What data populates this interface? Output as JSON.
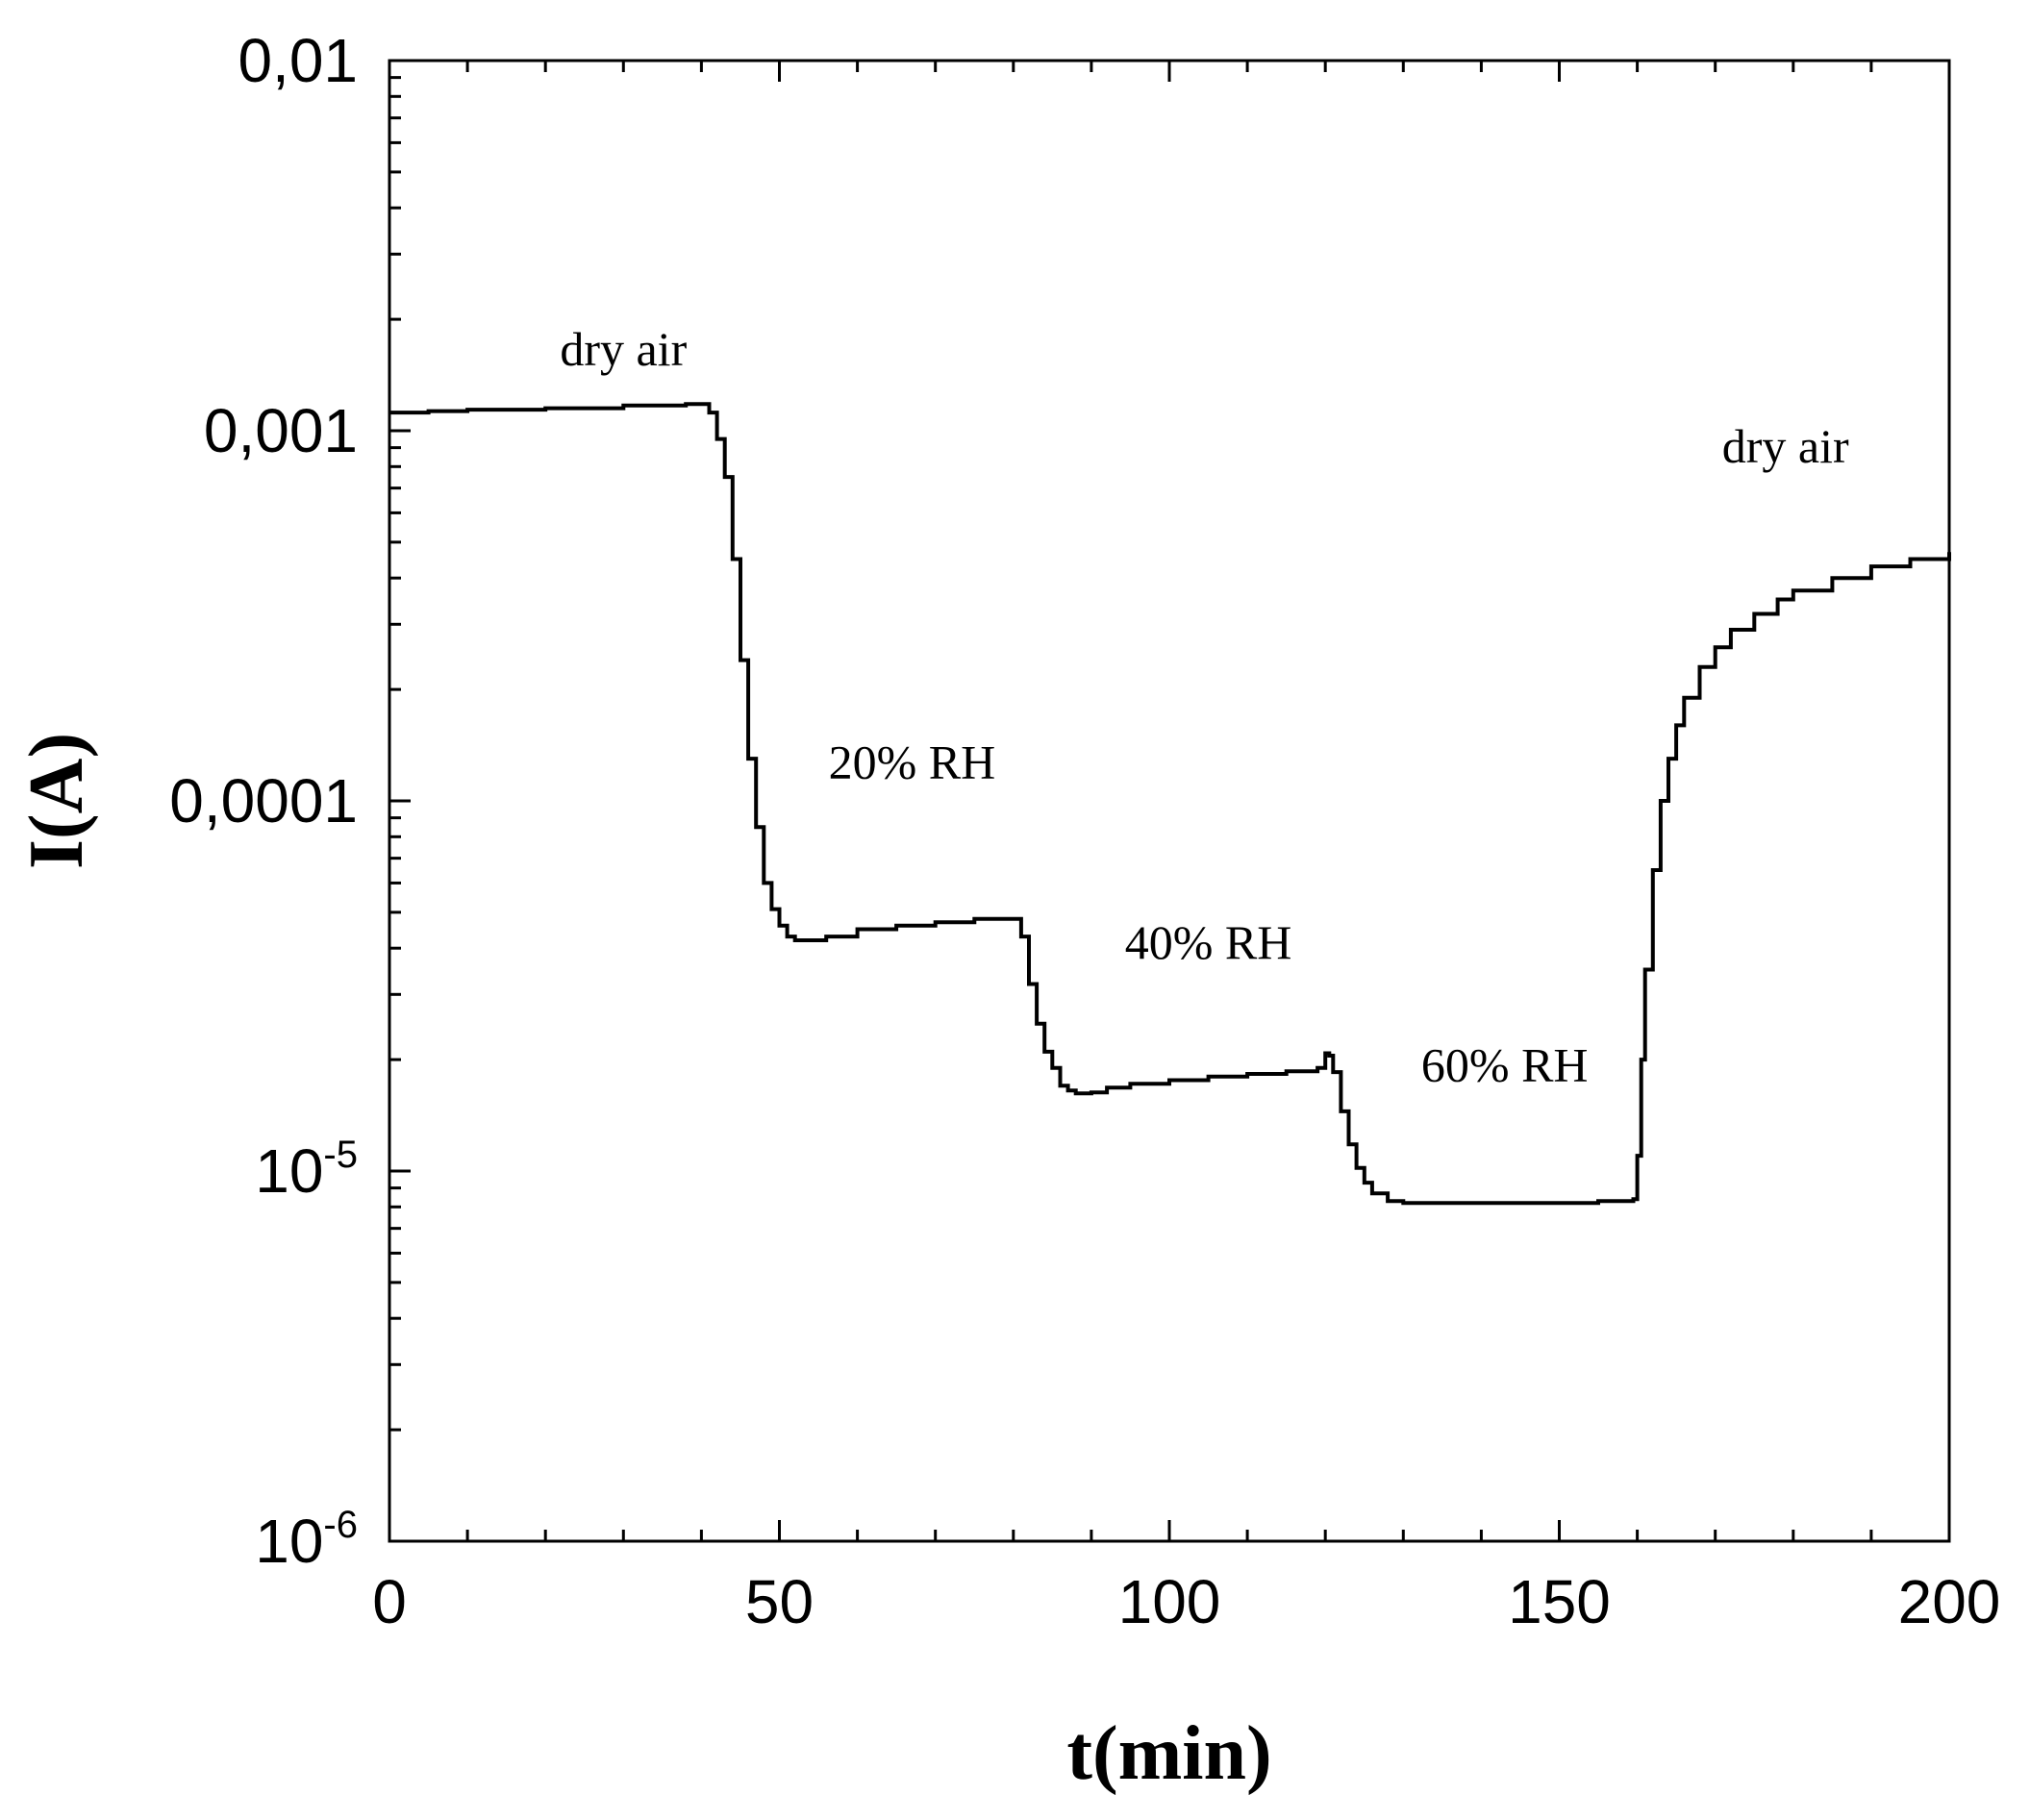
{
  "chart_data": {
    "type": "line",
    "xlabel": "t(min)",
    "ylabel": "I(A)",
    "xlim": [
      0,
      200
    ],
    "ylim": [
      1e-06,
      0.01
    ],
    "yscale": "log",
    "grid": false,
    "x_ticks": [
      {
        "value": 0,
        "label": "0"
      },
      {
        "value": 50,
        "label": "50"
      },
      {
        "value": 100,
        "label": "100"
      },
      {
        "value": 150,
        "label": "150"
      },
      {
        "value": 200,
        "label": "200"
      }
    ],
    "y_ticks": [
      {
        "value": 1e-06,
        "base": "10",
        "exp": "-6"
      },
      {
        "value": 1e-05,
        "base": "10",
        "exp": "-5"
      },
      {
        "value": 0.0001,
        "base": "0,0001",
        "exp": ""
      },
      {
        "value": 0.001,
        "base": "0,001",
        "exp": ""
      },
      {
        "value": 0.01,
        "base": "0,01",
        "exp": ""
      }
    ],
    "annotations": [
      {
        "text": "dry air",
        "x": 30,
        "y": 0.0015
      },
      {
        "text": "20% RH",
        "x": 67,
        "y": 0.000115
      },
      {
        "text": "40% RH",
        "x": 105,
        "y": 3.75e-05
      },
      {
        "text": "60% RH",
        "x": 143,
        "y": 1.75e-05
      },
      {
        "text": "dry air",
        "x": 179,
        "y": 0.00082
      }
    ],
    "series": [
      {
        "x": [
          0,
          5,
          10,
          20,
          30,
          38,
          40,
          41,
          42,
          43,
          44,
          45,
          46,
          47,
          48,
          49,
          50,
          51,
          52,
          54,
          56,
          60,
          65,
          70,
          75,
          80,
          81,
          82,
          83,
          84,
          85,
          86,
          87,
          88,
          90,
          92,
          95,
          100,
          105,
          110,
          115,
          119,
          120,
          120.5,
          121,
          122,
          123,
          124,
          125,
          126,
          128,
          130,
          135,
          140,
          145,
          150,
          155,
          159.5,
          160,
          160.5,
          161,
          162,
          163,
          164,
          165,
          166,
          168,
          170,
          172,
          175,
          178,
          180,
          185,
          190,
          195,
          200
        ],
        "y": [
          0.00112,
          0.00113,
          0.00114,
          0.00115,
          0.00117,
          0.00118,
          0.00118,
          0.00112,
          0.00095,
          0.00075,
          0.00045,
          0.00024,
          0.00013,
          8.5e-05,
          6e-05,
          5.1e-05,
          4.6e-05,
          4.3e-05,
          4.2e-05,
          4.2e-05,
          4.3e-05,
          4.5e-05,
          4.6e-05,
          4.7e-05,
          4.8e-05,
          4.8e-05,
          4.3e-05,
          3.2e-05,
          2.5e-05,
          2.1e-05,
          1.9e-05,
          1.7e-05,
          1.65e-05,
          1.62e-05,
          1.63e-05,
          1.68e-05,
          1.72e-05,
          1.76e-05,
          1.8e-05,
          1.83e-05,
          1.86e-05,
          1.9e-05,
          2.08e-05,
          2.05e-05,
          1.85e-05,
          1.45e-05,
          1.18e-05,
          1.02e-05,
          9.3e-06,
          8.7e-06,
          8.3e-06,
          8.2e-06,
          8.2e-06,
          8.2e-06,
          8.2e-06,
          8.2e-06,
          8.3e-06,
          8.4e-06,
          1.1e-05,
          2e-05,
          3.5e-05,
          6.5e-05,
          0.0001,
          0.00013,
          0.00016,
          0.00019,
          0.00023,
          0.00026,
          0.00029,
          0.00032,
          0.00035,
          0.00037,
          0.0004,
          0.00043,
          0.00045,
          0.00047
        ]
      }
    ]
  }
}
